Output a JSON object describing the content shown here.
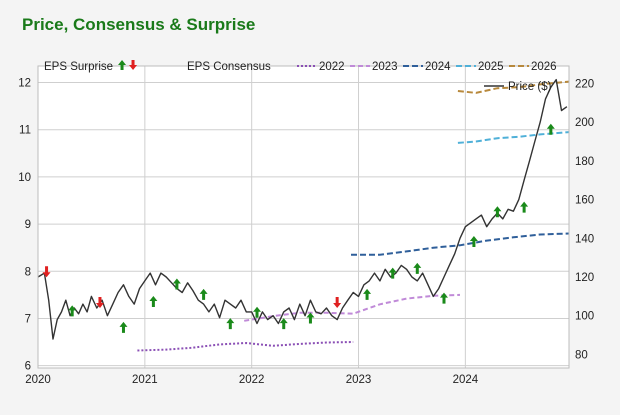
{
  "colors": {
    "title": "#1a7a1a",
    "price": "#333333",
    "c2022": "#8a4fb5",
    "c2023": "#c08ad8",
    "c2024": "#2f5f9a",
    "c2025": "#4fb0d8",
    "c2026": "#b8893c",
    "up": "#1a8a1a",
    "down": "#e02020",
    "grid": "#cfcfcf"
  },
  "chart_data": {
    "type": "line",
    "title": "Price, Consensus & Surprise",
    "legend": {
      "surprise_label": "EPS Surprise",
      "consensus_label": "EPS Consensus",
      "price_label": "Price ($)"
    },
    "x_ticks": [
      "2020",
      "2021",
      "2022",
      "2023",
      "2024"
    ],
    "x_range": [
      2020.0,
      2024.97
    ],
    "left_axis": {
      "ticks": [
        "6",
        "7",
        "8",
        "9",
        "10",
        "11",
        "12"
      ],
      "range": [
        5.95,
        12.35
      ]
    },
    "right_axis": {
      "ticks": [
        "80",
        "100",
        "120",
        "140",
        "160",
        "180",
        "200",
        "220"
      ],
      "range": [
        73,
        229
      ]
    },
    "price_series": {
      "name": "Price ($)",
      "x": [
        2020.0,
        2020.06,
        2020.1,
        2020.14,
        2020.18,
        2020.22,
        2020.26,
        2020.3,
        2020.34,
        2020.38,
        2020.42,
        2020.46,
        2020.5,
        2020.55,
        2020.6,
        2020.65,
        2020.7,
        2020.75,
        2020.8,
        2020.85,
        2020.9,
        2020.95,
        2021.0,
        2021.05,
        2021.1,
        2021.15,
        2021.2,
        2021.25,
        2021.3,
        2021.35,
        2021.4,
        2021.45,
        2021.5,
        2021.55,
        2021.6,
        2021.65,
        2021.7,
        2021.75,
        2021.8,
        2021.85,
        2021.9,
        2021.95,
        2022.0,
        2022.05,
        2022.1,
        2022.15,
        2022.2,
        2022.25,
        2022.3,
        2022.35,
        2022.4,
        2022.45,
        2022.5,
        2022.55,
        2022.6,
        2022.65,
        2022.7,
        2022.75,
        2022.8,
        2022.85,
        2022.9,
        2022.95,
        2023.0,
        2023.05,
        2023.1,
        2023.15,
        2023.2,
        2023.25,
        2023.3,
        2023.35,
        2023.4,
        2023.45,
        2023.5,
        2023.55,
        2023.6,
        2023.65,
        2023.7,
        2023.75,
        2023.8,
        2023.85,
        2023.9,
        2023.95,
        2024.0,
        2024.05,
        2024.1,
        2024.15,
        2024.2,
        2024.25,
        2024.3,
        2024.35,
        2024.4,
        2024.45,
        2024.5,
        2024.55,
        2024.6,
        2024.65,
        2024.7,
        2024.75,
        2024.8,
        2024.85,
        2024.9,
        2024.95
      ],
      "y": [
        120,
        122,
        108,
        88,
        98,
        102,
        108,
        100,
        104,
        101,
        106,
        102,
        110,
        104,
        108,
        100,
        106,
        112,
        116,
        110,
        106,
        114,
        118,
        122,
        116,
        122,
        120,
        117,
        114,
        112,
        117,
        113,
        108,
        106,
        102,
        106,
        99,
        108,
        106,
        104,
        108,
        102,
        102,
        96,
        102,
        98,
        100,
        96,
        102,
        104,
        98,
        106,
        100,
        108,
        102,
        101,
        104,
        100,
        98,
        104,
        108,
        112,
        110,
        116,
        118,
        122,
        118,
        124,
        120,
        122,
        126,
        124,
        120,
        118,
        122,
        116,
        110,
        114,
        120,
        126,
        132,
        140,
        146,
        148,
        150,
        152,
        146,
        150,
        153,
        150,
        155,
        154,
        160,
        170,
        180,
        190,
        200,
        212,
        218,
        222,
        206,
        208
      ]
    },
    "consensus_series": [
      {
        "name": "2022",
        "x": [
          2020.93,
          2021.2,
          2021.45,
          2021.7,
          2021.95,
          2022.2,
          2022.45,
          2022.7,
          2022.95
        ],
        "y": [
          6.32,
          6.34,
          6.38,
          6.45,
          6.48,
          6.42,
          6.46,
          6.49,
          6.5
        ]
      },
      {
        "name": "2023",
        "x": [
          2021.93,
          2022.2,
          2022.45,
          2022.7,
          2022.95,
          2023.2,
          2023.45,
          2023.7,
          2023.95
        ],
        "y": [
          6.95,
          7.05,
          7.12,
          7.12,
          7.1,
          7.3,
          7.42,
          7.48,
          7.5
        ]
      },
      {
        "name": "2024",
        "x": [
          2022.93,
          2023.2,
          2023.45,
          2023.7,
          2023.95,
          2024.2,
          2024.45,
          2024.7,
          2024.97
        ],
        "y": [
          8.35,
          8.35,
          8.42,
          8.5,
          8.55,
          8.65,
          8.72,
          8.78,
          8.8
        ]
      },
      {
        "name": "2025",
        "x": [
          2023.93,
          2024.1,
          2024.3,
          2024.5,
          2024.7,
          2024.97
        ],
        "y": [
          10.72,
          10.75,
          10.82,
          10.85,
          10.9,
          10.95
        ]
      },
      {
        "name": "2026",
        "x": [
          2023.93,
          2024.1,
          2024.3,
          2024.5,
          2024.7,
          2024.97
        ],
        "y": [
          11.82,
          11.78,
          11.88,
          11.9,
          11.96,
          12.02
        ]
      }
    ],
    "surprises": [
      {
        "x": 2020.08,
        "y": 8.0,
        "dir": "down"
      },
      {
        "x": 2020.32,
        "y": 7.15,
        "dir": "up"
      },
      {
        "x": 2020.58,
        "y": 7.35,
        "dir": "down"
      },
      {
        "x": 2020.8,
        "y": 6.8,
        "dir": "up"
      },
      {
        "x": 2021.08,
        "y": 7.35,
        "dir": "up"
      },
      {
        "x": 2021.3,
        "y": 7.72,
        "dir": "up"
      },
      {
        "x": 2021.55,
        "y": 7.5,
        "dir": "up"
      },
      {
        "x": 2021.8,
        "y": 6.88,
        "dir": "up"
      },
      {
        "x": 2022.05,
        "y": 7.12,
        "dir": "up"
      },
      {
        "x": 2022.3,
        "y": 6.88,
        "dir": "up"
      },
      {
        "x": 2022.55,
        "y": 7.0,
        "dir": "up"
      },
      {
        "x": 2022.8,
        "y": 7.35,
        "dir": "down"
      },
      {
        "x": 2023.08,
        "y": 7.5,
        "dir": "up"
      },
      {
        "x": 2023.32,
        "y": 7.95,
        "dir": "up"
      },
      {
        "x": 2023.55,
        "y": 8.05,
        "dir": "up"
      },
      {
        "x": 2023.8,
        "y": 7.42,
        "dir": "up"
      },
      {
        "x": 2024.08,
        "y": 8.62,
        "dir": "up"
      },
      {
        "x": 2024.3,
        "y": 9.25,
        "dir": "up"
      },
      {
        "x": 2024.55,
        "y": 9.35,
        "dir": "up"
      },
      {
        "x": 2024.8,
        "y": 11.0,
        "dir": "up"
      }
    ]
  }
}
